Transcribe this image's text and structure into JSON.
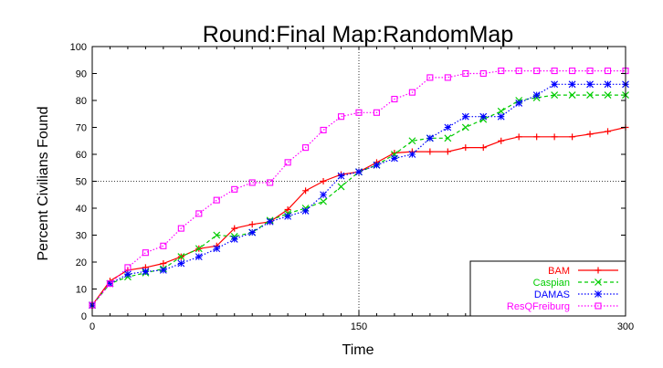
{
  "chart_data": {
    "type": "line",
    "title": "Round:Final Map:RandomMap",
    "xlabel": "Time",
    "ylabel": "Percent Civilians Found",
    "xlim": [
      0,
      300
    ],
    "ylim": [
      0,
      100
    ],
    "xticks": [
      "0",
      "150",
      "300"
    ],
    "yticks": [
      "0",
      "10",
      "20",
      "30",
      "40",
      "50",
      "60",
      "70",
      "80",
      "90",
      "100"
    ],
    "grid": "x=150 and y=50 dotted lines",
    "legend_position": "bottom-right",
    "series": [
      {
        "name": "BAM",
        "color": "#ff0000",
        "marker": "plus",
        "dash": "solid",
        "x": [
          0,
          10,
          20,
          30,
          40,
          50,
          60,
          70,
          80,
          90,
          100,
          110,
          120,
          130,
          140,
          150,
          160,
          170,
          180,
          190,
          200,
          210,
          220,
          230,
          240,
          250,
          260,
          270,
          280,
          290,
          300
        ],
        "y": [
          4,
          13,
          17,
          18,
          19.5,
          22,
          25,
          26,
          32.5,
          34,
          35,
          39.5,
          46.5,
          50,
          52.5,
          53.5,
          57,
          60.5,
          61,
          61,
          61,
          62.5,
          62.5,
          65,
          66.5,
          66.5,
          66.5,
          66.5,
          67.5,
          68.5,
          70
        ]
      },
      {
        "name": "Caspian",
        "color": "#00cc00",
        "marker": "x",
        "dash": "dashed",
        "x": [
          0,
          10,
          20,
          30,
          40,
          50,
          60,
          70,
          80,
          90,
          100,
          110,
          120,
          130,
          140,
          150,
          160,
          170,
          180,
          190,
          200,
          210,
          220,
          230,
          240,
          250,
          260,
          270,
          280,
          290,
          300
        ],
        "y": [
          4,
          12,
          14.5,
          16,
          17.5,
          22,
          25,
          30,
          29.5,
          31,
          35.5,
          38,
          40,
          42.5,
          48,
          53.5,
          56,
          60,
          65,
          66,
          66,
          70,
          73,
          76,
          80,
          81,
          82,
          82,
          82,
          82,
          82
        ]
      },
      {
        "name": "DAMAS",
        "color": "#0000ff",
        "marker": "star",
        "dash": "dotted",
        "x": [
          0,
          10,
          20,
          30,
          40,
          50,
          60,
          70,
          80,
          90,
          100,
          110,
          120,
          130,
          140,
          150,
          160,
          170,
          180,
          190,
          200,
          210,
          220,
          230,
          240,
          250,
          260,
          270,
          280,
          290,
          300
        ],
        "y": [
          4,
          12,
          15.5,
          16.5,
          17,
          19.5,
          22,
          25,
          28.5,
          31,
          35,
          37,
          39,
          45,
          52,
          53.5,
          56,
          58.5,
          60,
          66,
          70,
          74,
          74,
          74,
          79,
          82,
          86,
          86,
          86,
          86,
          86
        ]
      },
      {
        "name": "ResQFreiburg",
        "color": "#ff00ff",
        "marker": "square",
        "dash": "dotted",
        "x": [
          0,
          10,
          20,
          30,
          40,
          50,
          60,
          70,
          80,
          90,
          100,
          110,
          120,
          130,
          140,
          150,
          160,
          170,
          180,
          190,
          200,
          210,
          220,
          230,
          240,
          250,
          260,
          270,
          280,
          290,
          300
        ],
        "y": [
          4,
          12,
          18,
          23.5,
          26,
          32.5,
          38,
          43,
          47,
          49.5,
          49.5,
          57,
          62.5,
          69,
          74,
          75.5,
          75.5,
          80.5,
          83,
          88.5,
          88.5,
          90,
          90,
          91,
          91,
          91,
          91,
          91,
          91,
          91,
          91
        ]
      }
    ]
  }
}
